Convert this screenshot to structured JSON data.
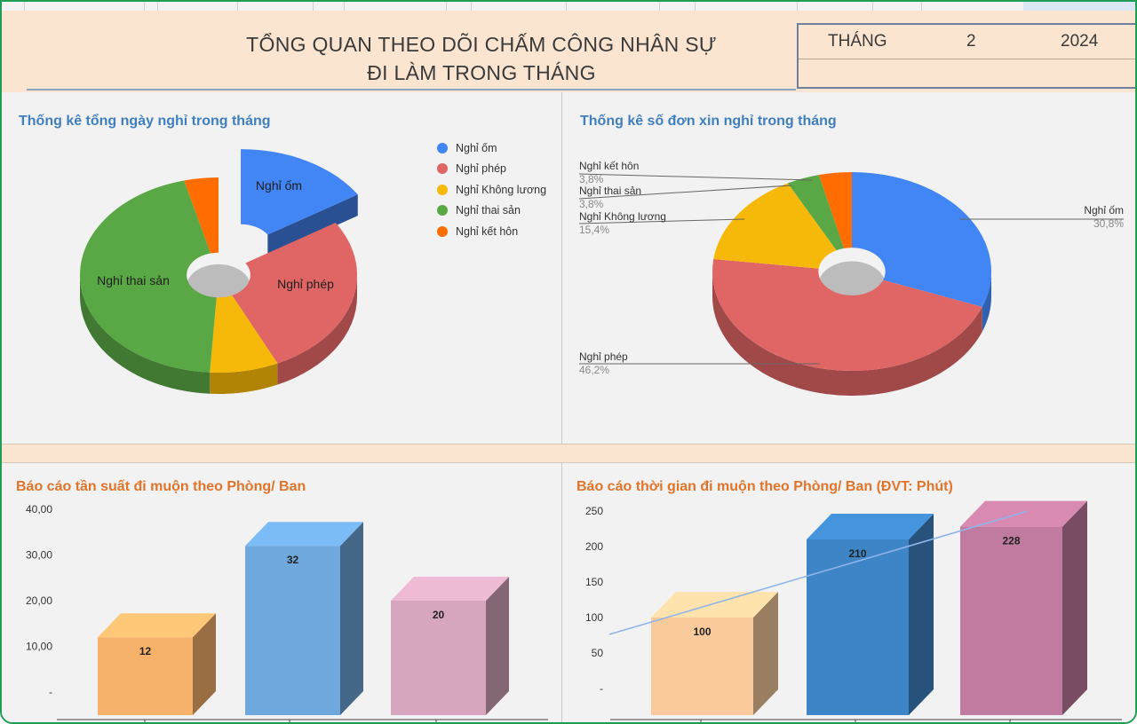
{
  "header": {
    "title_line1": "TỔNG QUAN THEO DÕI CHẤM CÔNG NHÂN SỰ",
    "title_line2": "ĐI LÀM TRONG THÁNG",
    "month_label": "THÁNG",
    "month_value": "2",
    "year_value": "2024"
  },
  "colors": {
    "header_bg": "#fbe5d0",
    "sick": "#4285f4",
    "paid_leave": "#e06666",
    "unpaid": "#f6b809",
    "maternity": "#5aa845",
    "wedding": "#ff6d01"
  },
  "chart_data": [
    {
      "type": "pie",
      "title": "Thống kê tổng ngày nghỉ trong tháng",
      "style": "3d-donut",
      "labels": [
        "Nghỉ ốm",
        "Nghỉ phép",
        "Nghỉ Không lương",
        "Nghỉ thai sản",
        "Nghỉ kết hôn"
      ],
      "values": [
        16,
        27,
        8,
        45,
        4
      ],
      "exploded": "Nghỉ ốm",
      "legend": "right"
    },
    {
      "type": "pie",
      "title": "Thống kê số đơn xin nghỉ trong tháng",
      "style": "3d-donut",
      "labels": [
        "Nghỉ ốm",
        "Nghỉ phép",
        "Nghỉ Không lương",
        "Nghỉ thai sản",
        "Nghỉ kết hôn"
      ],
      "values": [
        30.8,
        46.2,
        15.4,
        3.8,
        3.8
      ],
      "percent_labels": [
        "30,8%",
        "46,2%",
        "15,4%",
        "3,8%",
        "3,8%"
      ]
    },
    {
      "type": "bar",
      "title": "Báo cáo tần suất đi muộn theo Phòng/ Ban",
      "style": "3d",
      "categories": [
        "",
        "",
        ""
      ],
      "values": [
        12,
        32,
        20
      ],
      "value_labels": [
        "12",
        "32",
        "20"
      ],
      "ylim": [
        0,
        40
      ],
      "yticks": [
        "-",
        "10,00",
        "20,00",
        "30,00",
        "40,00"
      ]
    },
    {
      "type": "bar",
      "title": "Báo cáo thời gian đi muộn theo Phòng/ Ban (ĐVT: Phút)",
      "style": "3d",
      "categories": [
        "",
        "",
        ""
      ],
      "values": [
        100,
        210,
        228
      ],
      "value_labels": [
        "100",
        "210",
        "228"
      ],
      "ylim": [
        0,
        250
      ],
      "yticks": [
        "-",
        "50",
        "100",
        "150",
        "200",
        "250"
      ],
      "trendline": true
    }
  ]
}
